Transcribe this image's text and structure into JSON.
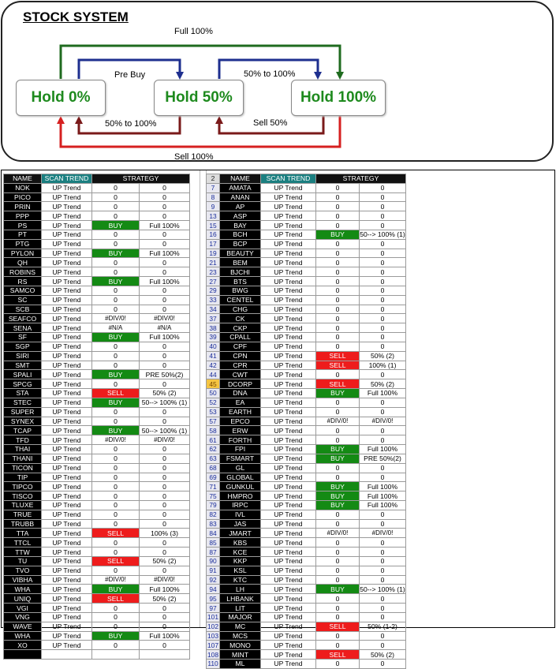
{
  "diagram": {
    "title": "STOCK SYSTEM",
    "hold0": "Hold 0%",
    "hold50": "Hold 50%",
    "hold100": "Hold 100%",
    "full100": "Full 100%",
    "prebuy": "Pre Buy",
    "l50to100top": "50% to 100%",
    "l50to100bottom": "50% to 100%",
    "sell50": "Sell 50%",
    "sell100": "Sell 100%",
    "colors": {
      "green_arrow": "#1f6b1f",
      "blue_arrow": "#1e2f8f",
      "red_arrow": "#d62020",
      "darkred_arrow": "#7a1a1a",
      "hold_text": "#1e8a1e"
    }
  },
  "left_table": {
    "headers": {
      "name": "NAME",
      "scan": "SCAN TREND",
      "strategy": "STRATEGY"
    },
    "rows": [
      [
        "NOK",
        "UP Trend",
        "0",
        "0",
        ""
      ],
      [
        "PICO",
        "UP Trend",
        "0",
        "0",
        ""
      ],
      [
        "PRIN",
        "UP Trend",
        "0",
        "0",
        ""
      ],
      [
        "PPP",
        "UP Trend",
        "0",
        "0",
        ""
      ],
      [
        "PS",
        "UP Trend",
        "BUY",
        "Full 100%",
        "buy"
      ],
      [
        "PT",
        "UP Trend",
        "0",
        "0",
        ""
      ],
      [
        "PTG",
        "UP Trend",
        "0",
        "0",
        ""
      ],
      [
        "PYLON",
        "UP Trend",
        "BUY",
        "Full 100%",
        "buy"
      ],
      [
        "QH",
        "UP Trend",
        "0",
        "0",
        ""
      ],
      [
        "ROBINS",
        "UP Trend",
        "0",
        "0",
        ""
      ],
      [
        "RS",
        "UP Trend",
        "BUY",
        "Full 100%",
        "buy"
      ],
      [
        "SAMCO",
        "UP Trend",
        "0",
        "0",
        ""
      ],
      [
        "SC",
        "UP Trend",
        "0",
        "0",
        ""
      ],
      [
        "SCB",
        "UP Trend",
        "0",
        "0",
        ""
      ],
      [
        "SEAFCO",
        "UP Trend",
        "#DIV/0!",
        "#DIV/0!",
        "err"
      ],
      [
        "SENA",
        "UP Trend",
        "#N/A",
        "#N/A",
        "err"
      ],
      [
        "SF",
        "UP Trend",
        "BUY",
        "Full 100%",
        "buy"
      ],
      [
        "SGP",
        "UP Trend",
        "0",
        "0",
        ""
      ],
      [
        "SIRI",
        "UP Trend",
        "0",
        "0",
        ""
      ],
      [
        "SMT",
        "UP Trend",
        "0",
        "0",
        ""
      ],
      [
        "SPALI",
        "UP Trend",
        "BUY",
        "PRE 50%(2)",
        "buy"
      ],
      [
        "SPCG",
        "UP Trend",
        "0",
        "0",
        ""
      ],
      [
        "STA",
        "UP Trend",
        "SELL",
        "50% (2)",
        "sell"
      ],
      [
        "STEC",
        "UP Trend",
        "BUY",
        "50--> 100% (1)",
        "buy"
      ],
      [
        "SUPER",
        "UP Trend",
        "0",
        "0",
        ""
      ],
      [
        "SYNEX",
        "UP Trend",
        "0",
        "0",
        ""
      ],
      [
        "TCAP",
        "UP Trend",
        "BUY",
        "50--> 100% (1)",
        "buy"
      ],
      [
        "TFD",
        "UP Trend",
        "#DIV/0!",
        "#DIV/0!",
        "err"
      ],
      [
        "THAI",
        "UP Trend",
        "0",
        "0",
        ""
      ],
      [
        "THANI",
        "UP Trend",
        "0",
        "0",
        ""
      ],
      [
        "TICON",
        "UP Trend",
        "0",
        "0",
        ""
      ],
      [
        "TIP",
        "UP Trend",
        "0",
        "0",
        ""
      ],
      [
        "TIPCO",
        "UP Trend",
        "0",
        "0",
        ""
      ],
      [
        "TISCO",
        "UP Trend",
        "0",
        "0",
        ""
      ],
      [
        "TLUXE",
        "UP Trend",
        "0",
        "0",
        ""
      ],
      [
        "TRUE",
        "UP Trend",
        "0",
        "0",
        ""
      ],
      [
        "TRUBB",
        "UP Trend",
        "0",
        "0",
        ""
      ],
      [
        "TTA",
        "UP Trend",
        "SELL",
        "100% (3)",
        "sell"
      ],
      [
        "TTCL",
        "UP Trend",
        "0",
        "0",
        ""
      ],
      [
        "TTW",
        "UP Trend",
        "0",
        "0",
        ""
      ],
      [
        "TU",
        "UP Trend",
        "SELL",
        "50% (2)",
        "sell"
      ],
      [
        "TVO",
        "UP Trend",
        "0",
        "0",
        ""
      ],
      [
        "VIBHA",
        "UP Trend",
        "#DIV/0!",
        "#DIV/0!",
        "err"
      ],
      [
        "WHA",
        "UP Trend",
        "BUY",
        "Full 100%",
        "buy"
      ],
      [
        "UNIQ",
        "UP Trend",
        "SELL",
        "50% (2)",
        "sell"
      ],
      [
        "VGI",
        "UP Trend",
        "0",
        "0",
        ""
      ],
      [
        "VNG",
        "UP Trend",
        "0",
        "0",
        ""
      ],
      [
        "WAVE",
        "UP Trend",
        "0",
        "0",
        ""
      ],
      [
        "WHA",
        "UP Trend",
        "BUY",
        "Full 100%",
        "buy"
      ],
      [
        "XO",
        "UP Trend",
        "0",
        "0",
        ""
      ],
      [
        "",
        "",
        "",
        "",
        ""
      ]
    ]
  },
  "right_table": {
    "headers": {
      "rownum": "2",
      "name": "NAME",
      "scan": "SCAN TREND",
      "strategy": "STRATEGY"
    },
    "rows": [
      [
        "7",
        "AMATA",
        "UP Trend",
        "0",
        "0",
        ""
      ],
      [
        "8",
        "ANAN",
        "UP Trend",
        "0",
        "0",
        ""
      ],
      [
        "9",
        "AP",
        "UP Trend",
        "0",
        "0",
        ""
      ],
      [
        "13",
        "ASP",
        "UP Trend",
        "0",
        "0",
        ""
      ],
      [
        "15",
        "BAY",
        "UP Trend",
        "0",
        "0",
        ""
      ],
      [
        "16",
        "BCH",
        "UP Trend",
        "BUY",
        "50--> 100% (1)",
        "buy"
      ],
      [
        "17",
        "BCP",
        "UP Trend",
        "0",
        "0",
        ""
      ],
      [
        "19",
        "BEAUTY",
        "UP Trend",
        "0",
        "0",
        ""
      ],
      [
        "21",
        "BEM",
        "UP Trend",
        "0",
        "0",
        ""
      ],
      [
        "23",
        "BJCHI",
        "UP Trend",
        "0",
        "0",
        ""
      ],
      [
        "27",
        "BTS",
        "UP Trend",
        "0",
        "0",
        ""
      ],
      [
        "29",
        "BWG",
        "UP Trend",
        "0",
        "0",
        ""
      ],
      [
        "33",
        "CENTEL",
        "UP Trend",
        "0",
        "0",
        ""
      ],
      [
        "34",
        "CHG",
        "UP Trend",
        "0",
        "0",
        ""
      ],
      [
        "37",
        "CK",
        "UP Trend",
        "0",
        "0",
        ""
      ],
      [
        "38",
        "CKP",
        "UP Trend",
        "0",
        "0",
        ""
      ],
      [
        "39",
        "CPALL",
        "UP Trend",
        "0",
        "0",
        ""
      ],
      [
        "40",
        "CPF",
        "UP Trend",
        "0",
        "0",
        ""
      ],
      [
        "41",
        "CPN",
        "UP Trend",
        "SELL",
        "50% (2)",
        "sell"
      ],
      [
        "42",
        "CPR",
        "UP Trend",
        "SELL",
        "100% (1)",
        "sell"
      ],
      [
        "44",
        "CWT",
        "UP Trend",
        "0",
        "0",
        ""
      ],
      [
        "45",
        "DCORP",
        "UP Trend",
        "SELL",
        "50% (2)",
        "sell"
      ],
      [
        "50",
        "DNA",
        "UP Trend",
        "BUY",
        "Full 100%",
        "buy"
      ],
      [
        "52",
        "EA",
        "UP Trend",
        "0",
        "0",
        ""
      ],
      [
        "53",
        "EARTH",
        "UP Trend",
        "0",
        "0",
        ""
      ],
      [
        "57",
        "EPCO",
        "UP Trend",
        "#DIV/0!",
        "#DIV/0!",
        "err"
      ],
      [
        "58",
        "ERW",
        "UP Trend",
        "0",
        "0",
        ""
      ],
      [
        "61",
        "FORTH",
        "UP Trend",
        "0",
        "0",
        ""
      ],
      [
        "62",
        "FPI",
        "UP Trend",
        "BUY",
        "Full 100%",
        "buy"
      ],
      [
        "63",
        "FSMART",
        "UP Trend",
        "BUY",
        "PRE 50%(2)",
        "buy"
      ],
      [
        "68",
        "GL",
        "UP Trend",
        "0",
        "0",
        ""
      ],
      [
        "69",
        "GLOBAL",
        "UP Trend",
        "0",
        "0",
        ""
      ],
      [
        "71",
        "GUNKUL",
        "UP Trend",
        "BUY",
        "Full 100%",
        "buy"
      ],
      [
        "75",
        "HMPRO",
        "UP Trend",
        "BUY",
        "Full 100%",
        "buy"
      ],
      [
        "79",
        "IRPC",
        "UP Trend",
        "BUY",
        "Full 100%",
        "buy"
      ],
      [
        "82",
        "IVL",
        "UP Trend",
        "0",
        "0",
        ""
      ],
      [
        "83",
        "JAS",
        "UP Trend",
        "0",
        "0",
        ""
      ],
      [
        "84",
        "JMART",
        "UP Trend",
        "#DIV/0!",
        "#DIV/0!",
        "err"
      ],
      [
        "85",
        "KBS",
        "UP Trend",
        "0",
        "0",
        ""
      ],
      [
        "87",
        "KCE",
        "UP Trend",
        "0",
        "0",
        ""
      ],
      [
        "90",
        "KKP",
        "UP Trend",
        "0",
        "0",
        ""
      ],
      [
        "91",
        "KSL",
        "UP Trend",
        "0",
        "0",
        ""
      ],
      [
        "92",
        "KTC",
        "UP Trend",
        "0",
        "0",
        ""
      ],
      [
        "94",
        "LH",
        "UP Trend",
        "BUY",
        "50--> 100% (1)",
        "buy"
      ],
      [
        "95",
        "LHBANK",
        "UP Trend",
        "0",
        "0",
        ""
      ],
      [
        "97",
        "LIT",
        "UP Trend",
        "0",
        "0",
        ""
      ],
      [
        "101",
        "MAJOR",
        "UP Trend",
        "0",
        "0",
        ""
      ],
      [
        "102",
        "MC",
        "UP Trend",
        "SELL",
        "50% (1-2)",
        "sell"
      ],
      [
        "103",
        "MCS",
        "UP Trend",
        "0",
        "0",
        ""
      ],
      [
        "107",
        "MONO",
        "UP Trend",
        "0",
        "0",
        ""
      ],
      [
        "108",
        "MINT",
        "UP Trend",
        "SELL",
        "50% (2)",
        "sell"
      ],
      [
        "110",
        "ML",
        "UP Trend",
        "0",
        "0",
        ""
      ]
    ]
  }
}
